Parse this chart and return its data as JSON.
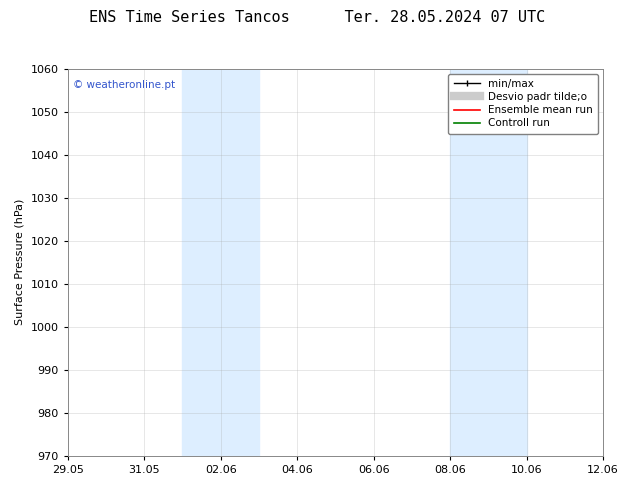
{
  "title": "ENS Time Series Tancos      Ter. 28.05.2024 07 UTC",
  "ylabel": "Surface Pressure (hPa)",
  "ylim": [
    970,
    1060
  ],
  "yticks": [
    970,
    980,
    990,
    1000,
    1010,
    1020,
    1030,
    1040,
    1050,
    1060
  ],
  "xlim_start": "2024-05-29",
  "xlim_end": "2024-06-12",
  "xtick_labels": [
    "29.05",
    "31.05",
    "02.06",
    "04.06",
    "06.06",
    "08.06",
    "10.06",
    "12.06"
  ],
  "shaded_regions": [
    {
      "start": "2024-06-01",
      "end": "2024-06-03"
    },
    {
      "start": "2024-06-08",
      "end": "2024-06-10"
    }
  ],
  "shaded_color": "#ddeeff",
  "watermark": "© weatheronline.pt",
  "watermark_color": "#3355cc",
  "legend_items": [
    {
      "label": "min/max",
      "color": "black",
      "linestyle": "-",
      "linewidth": 1.0
    },
    {
      "label": "Desvio padr tilde;o",
      "color": "#cccccc",
      "linestyle": "-",
      "linewidth": 6
    },
    {
      "label": "Ensemble mean run",
      "color": "red",
      "linestyle": "-",
      "linewidth": 1.2
    },
    {
      "label": "Controll run",
      "color": "green",
      "linestyle": "-",
      "linewidth": 1.2
    }
  ],
  "background_color": "#ffffff",
  "plot_bg_color": "#ffffff",
  "grid_color": "#aaaaaa",
  "title_fontsize": 11,
  "axis_fontsize": 8,
  "tick_fontsize": 8
}
